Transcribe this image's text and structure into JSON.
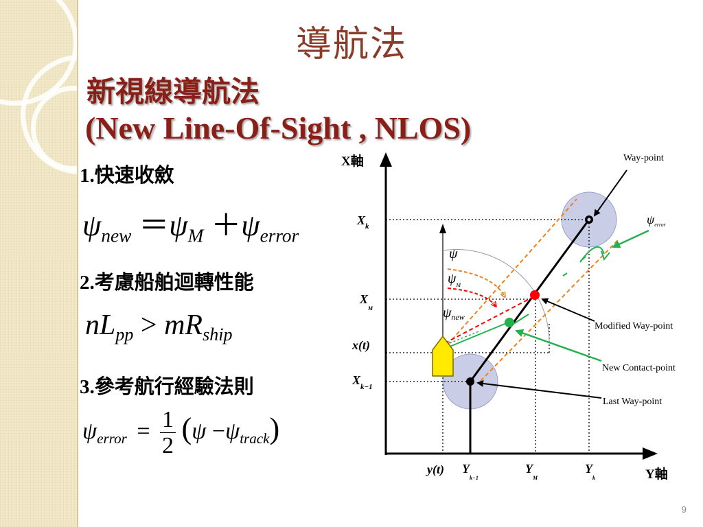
{
  "slide": {
    "title": "導航法",
    "subtitle_zh": "新視線導航法",
    "subtitle_en": "(New Line-Of-Sight , NLOS)",
    "page_number": "9"
  },
  "items": [
    {
      "num": "1.",
      "text": "快速收斂"
    },
    {
      "num": "2.",
      "text": "考慮船舶迴轉性能"
    },
    {
      "num": "3.",
      "text": "參考航行經驗法則"
    }
  ],
  "formulas": {
    "f1": {
      "lhs_sym": "ψ",
      "lhs_sub": "new",
      "eq": "＝",
      "a_sym": "ψ",
      "a_sub": "M",
      "plus": "＋",
      "b_sym": "ψ",
      "b_sub": "error"
    },
    "f2": {
      "n": "n",
      "L": "L",
      "L_sub": "pp",
      "gt": ">",
      "m": "m",
      "R": "R",
      "R_sub": "ship"
    },
    "f3": {
      "lhs_sym": "ψ",
      "lhs_sub": "error",
      "eq": "=",
      "frac_num": "1",
      "frac_den": "2",
      "lp": "(",
      "a_sym": "ψ",
      "minus": "−",
      "b_sym": "ψ",
      "b_sub": "track",
      "rp": ")"
    }
  },
  "diagram": {
    "x_axis_label": "X軸",
    "y_axis_label": "Y軸",
    "x_ticks": {
      "xk": "X",
      "xk_sub": "k",
      "xm": "X",
      "xm_sub": "M",
      "xt": "x(t)",
      "xk1": "X",
      "xk1_sub": "k−1"
    },
    "y_ticks": {
      "yt": "y(t)",
      "yk1": "Y",
      "yk1_sub": "k−1",
      "ym": "Y",
      "ym_sub": "M",
      "yk": "Y",
      "yk_sub": "k"
    },
    "angle_labels": {
      "psi": "ψ",
      "psi_m": "ψ",
      "psi_m_sub": "M",
      "psi_new": "ψ",
      "psi_new_sub": "new",
      "psi_error": "ψ",
      "psi_error_sub": "error"
    },
    "callouts": {
      "waypoint": "Way-point",
      "modified_waypoint": "Modified Way-point",
      "new_contact_point": "New Contact-point",
      "last_waypoint": "Last Way-point"
    },
    "colors": {
      "modified_point": "#ff0000",
      "contact_point": "#22b14c",
      "track_offset": "#f0801a",
      "ship_fill": "#ffea00",
      "circle_fill": "#c9cde6"
    }
  }
}
